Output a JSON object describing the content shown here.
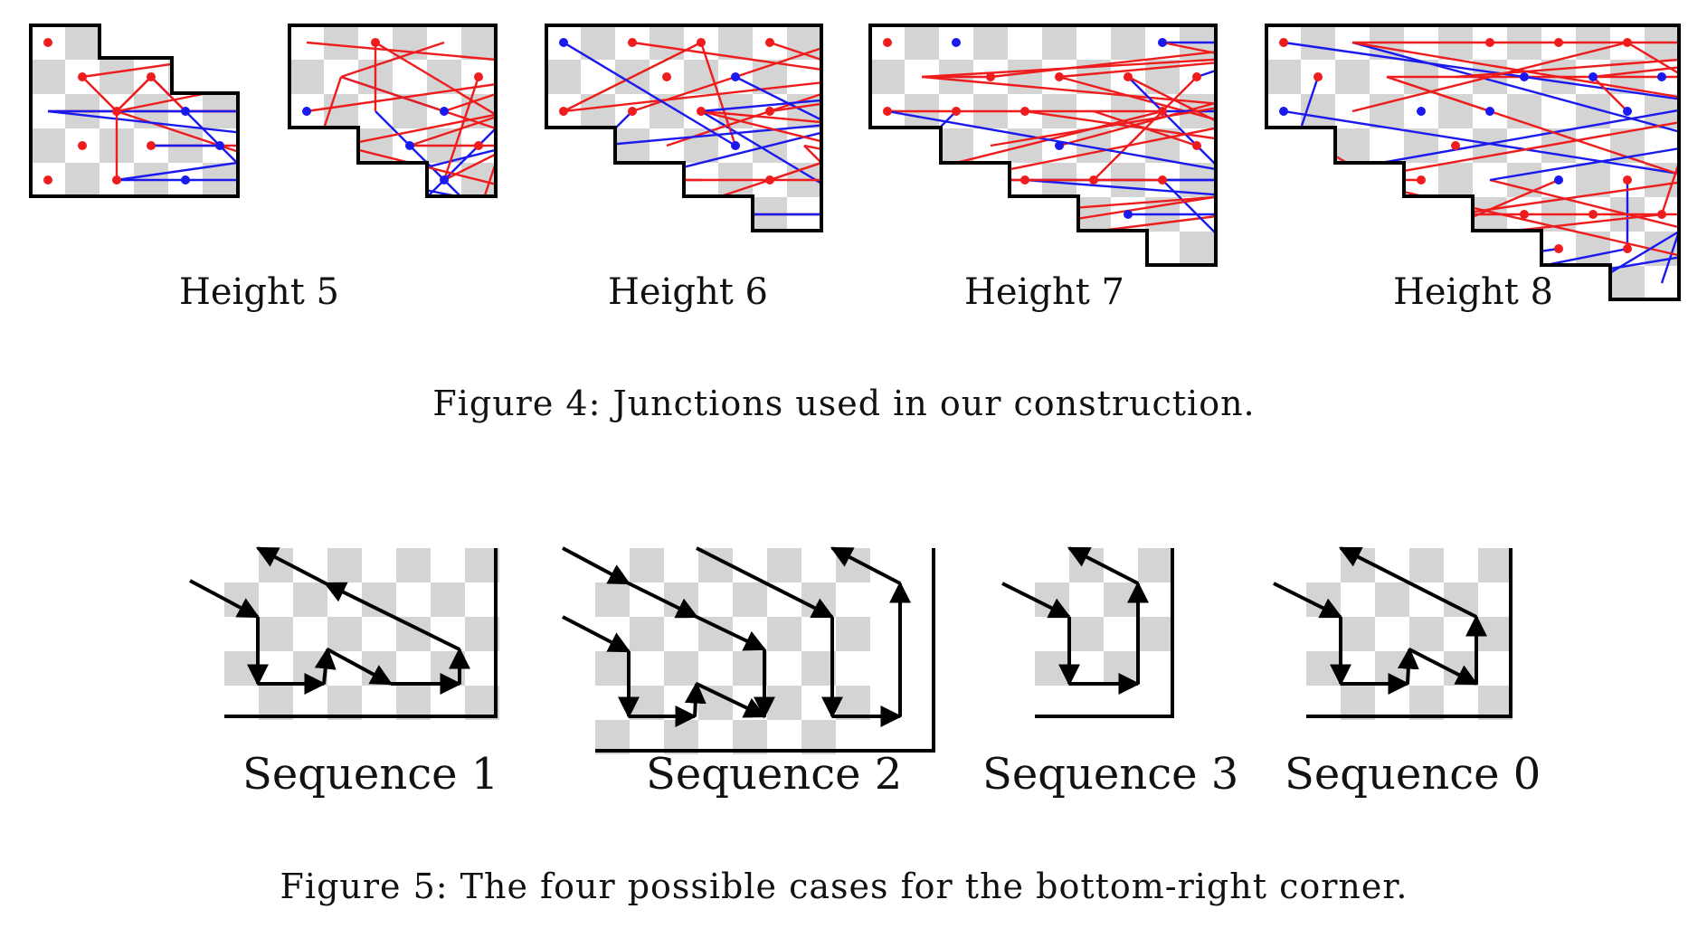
{
  "figure4": {
    "labels": [
      "Height 5",
      "Height 6",
      "Height 7",
      "Height 8"
    ],
    "caption": "Figure 4: Junctions used in our construction."
  },
  "figure5": {
    "labels": [
      "Sequence 1",
      "Sequence 2",
      "Sequence 3",
      "Sequence 0"
    ],
    "caption": "Figure 5: The four possible cases for the bottom-right corner."
  },
  "colors": {
    "red_path": "#ee1c1c",
    "blue_path": "#1a1aee",
    "checker": "#d4d4d4",
    "outline": "#000000"
  }
}
